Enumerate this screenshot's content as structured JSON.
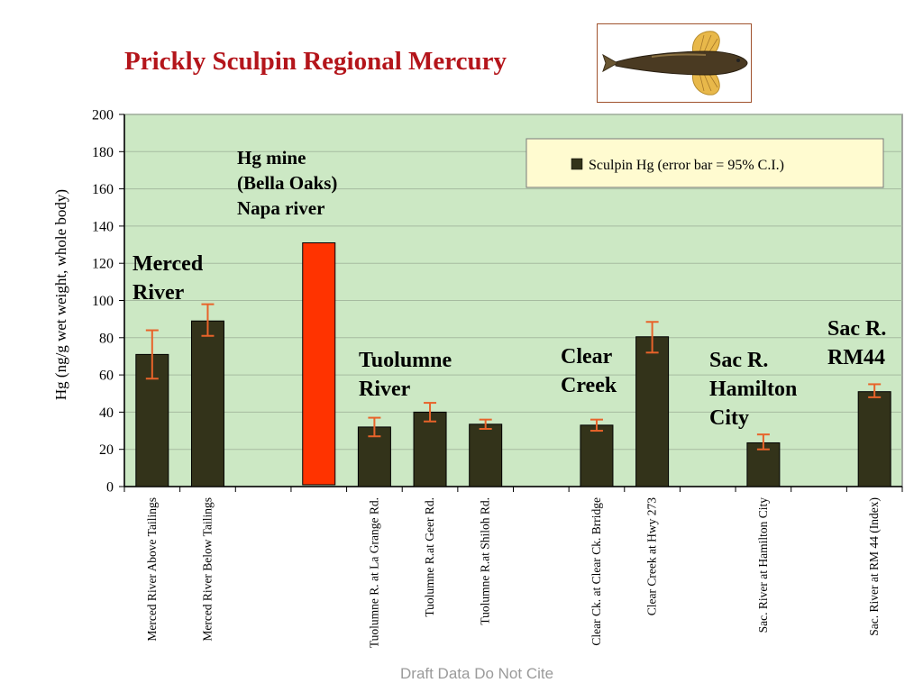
{
  "slide": {
    "title": "Prickly Sculpin Regional Mercury",
    "footer": "Draft Data Do Not Cite"
  },
  "chart_data": {
    "type": "bar",
    "title": "",
    "ylabel": "Hg (ng/g wet weight, whole body)",
    "xlabel": "",
    "ylim": [
      0,
      200
    ],
    "yticks": [
      0,
      20,
      40,
      60,
      80,
      100,
      120,
      140,
      160,
      180,
      200
    ],
    "grid": true,
    "legend": {
      "position": "top-right",
      "label": "Sculpin Hg (error bar = 95% C.I.)"
    },
    "categories": [
      "Merced River Above Tailings",
      "Merced River Below Tailings",
      "",
      "",
      "Tuolumne R. at La Grange Rd.",
      "Tuolumne R.at Geer Rd.",
      "Tuolumne R.at Shiloh Rd.",
      "",
      "Clear Ck. at Clear Ck. Brridge",
      "Clear Creek at Hwy 273",
      "",
      "Sac. River at Hamilton City",
      "",
      "Sac. River at RM 44 (Index)"
    ],
    "series": [
      {
        "name": "Sculpin Hg (error bar = 95% C.I.)",
        "values": [
          71,
          89,
          null,
          131,
          32,
          40,
          33.5,
          null,
          33,
          80.5,
          null,
          23.5,
          null,
          51
        ],
        "ci_low": [
          58,
          81,
          null,
          null,
          27,
          35,
          31,
          null,
          30,
          72,
          null,
          20,
          null,
          48
        ],
        "ci_high": [
          84,
          98,
          null,
          null,
          37,
          45,
          36,
          null,
          36,
          88.5,
          null,
          28,
          null,
          55
        ]
      }
    ],
    "highlight": {
      "index": 3,
      "value": 131,
      "color": "#ff3300"
    },
    "annotations": [
      {
        "id": "merced",
        "lines": [
          "Merced",
          "River"
        ]
      },
      {
        "id": "hgmine",
        "lines": [
          "Hg mine",
          "(Bella Oaks)",
          "Napa river"
        ]
      },
      {
        "id": "tuolumne",
        "lines": [
          "Tuolumne",
          "River"
        ]
      },
      {
        "id": "clear",
        "lines": [
          "Clear",
          "Creek"
        ]
      },
      {
        "id": "hamilton",
        "lines": [
          "Sac R.",
          "Hamilton",
          "City"
        ]
      },
      {
        "id": "rm44",
        "lines": [
          "Sac R.",
          "RM44"
        ]
      }
    ],
    "colors": {
      "bar": "#33331a",
      "highlight": "#ff3300",
      "error_bar": "#e8632a",
      "plot_bg": "#cce8c4",
      "legend_bg": "#fffbd0",
      "grid": "#a6bba0"
    }
  }
}
